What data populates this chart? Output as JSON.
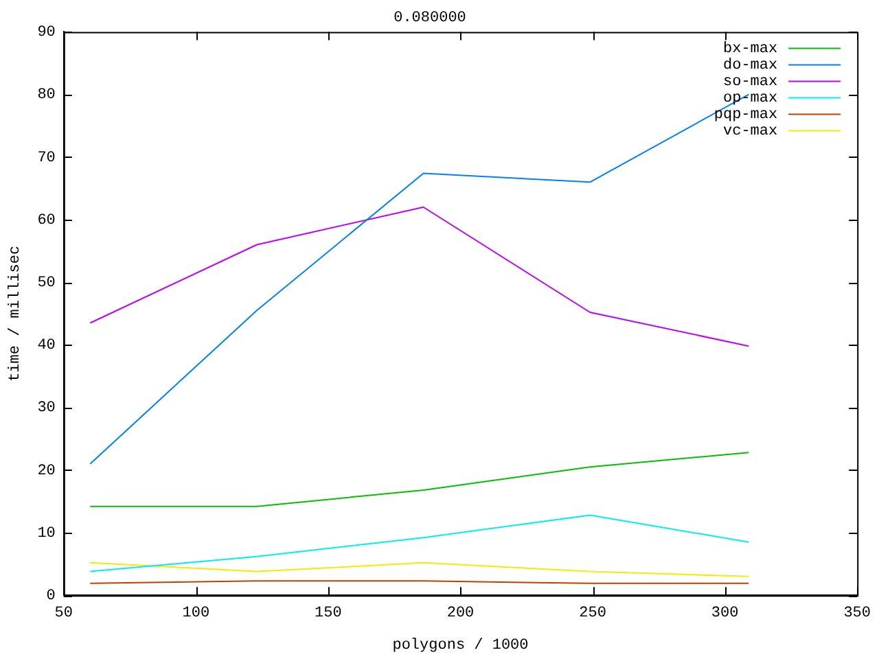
{
  "chart_data": {
    "type": "line",
    "title": "0.080000",
    "xlabel": "polygons / 1000",
    "ylabel": "time / millisec",
    "x": [
      60,
      123,
      186,
      249,
      309
    ],
    "series": [
      {
        "name": "bx-max",
        "color": "#00c000",
        "values": [
          14.2,
          14.2,
          16.8,
          20.5,
          22.8
        ]
      },
      {
        "name": "do-max",
        "color": "#0080ff",
        "values": [
          21,
          45.5,
          67.4,
          66,
          80
        ]
      },
      {
        "name": "so-max",
        "color": "#c000ff",
        "values": [
          43.5,
          56,
          62,
          45.2,
          39.8
        ]
      },
      {
        "name": "op-max",
        "color": "#00eeee",
        "values": [
          3.8,
          6.2,
          9.2,
          12.8,
          8.5
        ]
      },
      {
        "name": "pqp-max",
        "color": "#c04000",
        "values": [
          1.9,
          2.3,
          2.3,
          1.9,
          1.9
        ]
      },
      {
        "name": "vc-max",
        "color": "#eeee00",
        "values": [
          5.2,
          3.8,
          5.2,
          3.8,
          3.0
        ]
      }
    ],
    "xlim": [
      50,
      350
    ],
    "xticks": [
      50,
      100,
      150,
      200,
      250,
      300,
      350
    ],
    "ylim": [
      0,
      90
    ],
    "yticks": [
      0,
      10,
      20,
      30,
      40,
      50,
      60,
      70,
      80,
      90
    ],
    "grid": false,
    "legend": "top right",
    "marker": "none",
    "line_style": "solid"
  }
}
